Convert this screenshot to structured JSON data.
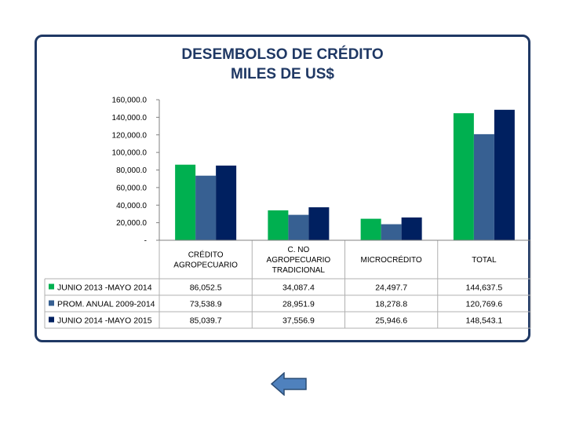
{
  "title_line1": "DESEMBOLSO DE CRÉDITO",
  "title_line2": "MILES DE US$",
  "colors": {
    "series1": "#00b050",
    "series2": "#376092",
    "series3": "#002060",
    "frame": "#1f3864"
  },
  "chart_data": {
    "type": "bar",
    "title": "DESEMBOLSO DE CRÉDITO MILES DE US$",
    "categories": [
      [
        "CRÉDITO",
        "AGROPECUARIO"
      ],
      [
        "C. NO",
        "AGROPECUARIO",
        "TRADICIONAL"
      ],
      [
        "MICROCRÉDITO"
      ],
      [
        "TOTAL"
      ]
    ],
    "series": [
      {
        "name": "JUNIO 2013 -MAYO 2014",
        "values": [
          86052.5,
          34087.4,
          24497.7,
          144637.5
        ],
        "labels": [
          "86,052.5",
          "34,087.4",
          "24,497.7",
          "144,637.5"
        ]
      },
      {
        "name": "PROM.  ANUAL  2009-2014",
        "values": [
          73538.9,
          28951.9,
          18278.8,
          120769.6
        ],
        "labels": [
          "73,538.9",
          "28,951.9",
          "18,278.8",
          "120,769.6"
        ]
      },
      {
        "name": "JUNIO 2014 -MAYO 2015",
        "values": [
          85039.7,
          37556.9,
          25946.6,
          148543.1
        ],
        "labels": [
          "85,039.7",
          "37,556.9",
          "25,946.6",
          "148,543.1"
        ]
      }
    ],
    "ylim": [
      0,
      160000
    ],
    "yticks": [
      "-",
      "20,000.0",
      "40,000.0",
      "60,000.0",
      "80,000.0",
      "100,000.0",
      "120,000.0",
      "140,000.0",
      "160,000.0"
    ],
    "grid": false,
    "legend": "data-table"
  },
  "nav": {
    "back_icon": "left-arrow-icon"
  }
}
